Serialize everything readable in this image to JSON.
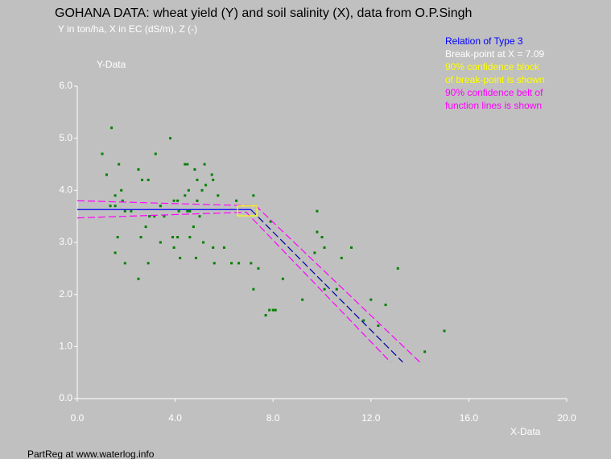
{
  "chart_data": {
    "type": "scatter",
    "title": "GOHANA DATA: wheat yield (Y) and soil salinity (X), data from O.P.Singh",
    "subtitle": "Y in ton/ha, X in EC (dS/m), Z (-)",
    "y_label": "Y-Data",
    "x_label": "X-Data",
    "footer": "PartReg at www.waterlog.info",
    "annotations": [
      {
        "text": "Relation of Type 3",
        "color": "#0000ff"
      },
      {
        "text": "Break-point at X =  7.09",
        "color": "#ffffff"
      },
      {
        "text": "90% confidence block",
        "color": "#ffff00"
      },
      {
        "text": "of break-point is shown",
        "color": "#ffff00"
      },
      {
        "text": "90% confidence belt of",
        "color": "#ff00ff"
      },
      {
        "text": "function lines is shown",
        "color": "#ff00ff"
      }
    ],
    "xlim": [
      0,
      20
    ],
    "ylim": [
      0,
      6
    ],
    "xticks": [
      {
        "value": 0,
        "label": "0.0"
      },
      {
        "value": 4,
        "label": "4.0"
      },
      {
        "value": 8,
        "label": "8.0"
      },
      {
        "value": 12,
        "label": "12.0"
      },
      {
        "value": 16,
        "label": "16.0"
      },
      {
        "value": 20,
        "label": "20.0"
      }
    ],
    "yticks": [
      {
        "value": 0,
        "label": "0.0"
      },
      {
        "value": 1,
        "label": "1.0"
      },
      {
        "value": 2,
        "label": "2.0"
      },
      {
        "value": 3,
        "label": "3.0"
      },
      {
        "value": 4,
        "label": "4.0"
      },
      {
        "value": 5,
        "label": "5.0"
      },
      {
        "value": 6,
        "label": "6.0"
      }
    ],
    "points": {
      "color": "#008000",
      "x": [
        1.02,
        1.2,
        1.4,
        1.35,
        1.55,
        1.55,
        1.55,
        1.65,
        1.7,
        1.8,
        1.85,
        1.95,
        1.95,
        2.2,
        2.5,
        2.5,
        2.6,
        2.65,
        2.8,
        2.9,
        2.9,
        2.95,
        3.2,
        3.15,
        3.4,
        3.4,
        3.55,
        3.8,
        3.9,
        3.95,
        3.95,
        4.1,
        4.1,
        4.15,
        4.2,
        4.4,
        4.4,
        4.5,
        4.5,
        4.55,
        4.6,
        4.6,
        4.75,
        4.8,
        4.85,
        4.9,
        4.9,
        5.0,
        5.1,
        5.15,
        5.2,
        5.25,
        5.5,
        5.55,
        5.55,
        5.6,
        5.75,
        6.0,
        6.3,
        6.5,
        6.6,
        7.1,
        7.2,
        7.2,
        7.4,
        7.7,
        7.85,
        7.9,
        8.0,
        8.1,
        8.4,
        9.2,
        9.7,
        9.8,
        9.8,
        10.0,
        10.1,
        10.1,
        10.6,
        10.8,
        11.2,
        11.7,
        12.0,
        12.3,
        12.6,
        13.1,
        14.2,
        15.0
      ],
      "y": [
        4.7,
        4.3,
        5.2,
        3.7,
        3.9,
        3.7,
        2.8,
        3.1,
        4.5,
        4.0,
        3.8,
        2.6,
        3.6,
        3.6,
        4.4,
        2.3,
        3.1,
        4.2,
        3.3,
        4.2,
        2.6,
        3.5,
        4.7,
        3.5,
        3.7,
        3.0,
        3.5,
        5.0,
        3.1,
        3.8,
        2.9,
        3.8,
        3.1,
        3.6,
        2.7,
        3.9,
        4.5,
        3.6,
        4.5,
        4.0,
        3.1,
        3.6,
        3.3,
        4.4,
        2.7,
        3.8,
        4.2,
        3.5,
        4.0,
        3.0,
        4.5,
        4.1,
        4.3,
        4.2,
        2.9,
        2.6,
        3.9,
        2.9,
        2.6,
        3.8,
        2.6,
        2.6,
        2.1,
        3.9,
        2.5,
        1.6,
        1.7,
        3.4,
        1.7,
        1.7,
        2.3,
        1.9,
        2.8,
        3.6,
        3.2,
        3.1,
        2.1,
        2.9,
        2.1,
        2.7,
        2.9,
        1.5,
        1.9,
        1.4,
        1.8,
        2.5,
        0.9,
        1.3
      ]
    },
    "lines": [
      {
        "color": "#0000ff",
        "dash": false,
        "x": [
          0,
          7.09
        ],
        "y": [
          3.63,
          3.63
        ]
      },
      {
        "color": "#0000a0",
        "dash": true,
        "x": [
          7.09,
          13.3
        ],
        "y": [
          3.63,
          0.7
        ]
      },
      {
        "color": "#ff00ff",
        "dash": true,
        "x": [
          0,
          7.3,
          14.0
        ],
        "y": [
          3.8,
          3.7,
          0.7
        ]
      },
      {
        "color": "#ff00ff",
        "dash": true,
        "x": [
          0,
          6.9,
          12.8
        ],
        "y": [
          3.47,
          3.58,
          0.7
        ]
      }
    ],
    "block": {
      "color": "#ffff00",
      "x": [
        6.55,
        7.34
      ],
      "y": [
        3.51,
        3.7
      ]
    }
  }
}
